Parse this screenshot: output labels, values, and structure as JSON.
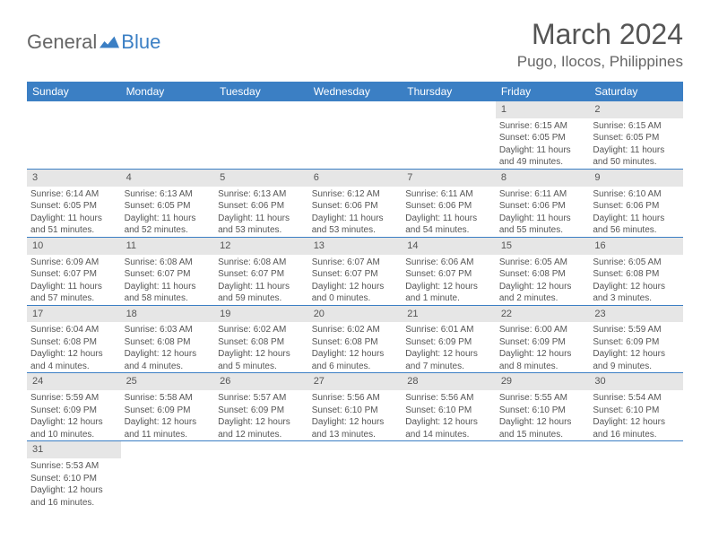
{
  "logo": {
    "general": "General",
    "blue": "Blue"
  },
  "header": {
    "month": "March 2024",
    "location": "Pugo, Ilocos, Philippines"
  },
  "colors": {
    "header_bg": "#3b7fc4",
    "header_text": "#ffffff",
    "daynum_bg": "#e6e6e6",
    "border": "#3b7fc4",
    "text": "#555555",
    "background": "#ffffff"
  },
  "weekdays": [
    "Sunday",
    "Monday",
    "Tuesday",
    "Wednesday",
    "Thursday",
    "Friday",
    "Saturday"
  ],
  "weeks": [
    [
      null,
      null,
      null,
      null,
      null,
      {
        "n": "1",
        "sr": "Sunrise: 6:15 AM",
        "ss": "Sunset: 6:05 PM",
        "dl": "Daylight: 11 hours and 49 minutes."
      },
      {
        "n": "2",
        "sr": "Sunrise: 6:15 AM",
        "ss": "Sunset: 6:05 PM",
        "dl": "Daylight: 11 hours and 50 minutes."
      }
    ],
    [
      {
        "n": "3",
        "sr": "Sunrise: 6:14 AM",
        "ss": "Sunset: 6:05 PM",
        "dl": "Daylight: 11 hours and 51 minutes."
      },
      {
        "n": "4",
        "sr": "Sunrise: 6:13 AM",
        "ss": "Sunset: 6:05 PM",
        "dl": "Daylight: 11 hours and 52 minutes."
      },
      {
        "n": "5",
        "sr": "Sunrise: 6:13 AM",
        "ss": "Sunset: 6:06 PM",
        "dl": "Daylight: 11 hours and 53 minutes."
      },
      {
        "n": "6",
        "sr": "Sunrise: 6:12 AM",
        "ss": "Sunset: 6:06 PM",
        "dl": "Daylight: 11 hours and 53 minutes."
      },
      {
        "n": "7",
        "sr": "Sunrise: 6:11 AM",
        "ss": "Sunset: 6:06 PM",
        "dl": "Daylight: 11 hours and 54 minutes."
      },
      {
        "n": "8",
        "sr": "Sunrise: 6:11 AM",
        "ss": "Sunset: 6:06 PM",
        "dl": "Daylight: 11 hours and 55 minutes."
      },
      {
        "n": "9",
        "sr": "Sunrise: 6:10 AM",
        "ss": "Sunset: 6:06 PM",
        "dl": "Daylight: 11 hours and 56 minutes."
      }
    ],
    [
      {
        "n": "10",
        "sr": "Sunrise: 6:09 AM",
        "ss": "Sunset: 6:07 PM",
        "dl": "Daylight: 11 hours and 57 minutes."
      },
      {
        "n": "11",
        "sr": "Sunrise: 6:08 AM",
        "ss": "Sunset: 6:07 PM",
        "dl": "Daylight: 11 hours and 58 minutes."
      },
      {
        "n": "12",
        "sr": "Sunrise: 6:08 AM",
        "ss": "Sunset: 6:07 PM",
        "dl": "Daylight: 11 hours and 59 minutes."
      },
      {
        "n": "13",
        "sr": "Sunrise: 6:07 AM",
        "ss": "Sunset: 6:07 PM",
        "dl": "Daylight: 12 hours and 0 minutes."
      },
      {
        "n": "14",
        "sr": "Sunrise: 6:06 AM",
        "ss": "Sunset: 6:07 PM",
        "dl": "Daylight: 12 hours and 1 minute."
      },
      {
        "n": "15",
        "sr": "Sunrise: 6:05 AM",
        "ss": "Sunset: 6:08 PM",
        "dl": "Daylight: 12 hours and 2 minutes."
      },
      {
        "n": "16",
        "sr": "Sunrise: 6:05 AM",
        "ss": "Sunset: 6:08 PM",
        "dl": "Daylight: 12 hours and 3 minutes."
      }
    ],
    [
      {
        "n": "17",
        "sr": "Sunrise: 6:04 AM",
        "ss": "Sunset: 6:08 PM",
        "dl": "Daylight: 12 hours and 4 minutes."
      },
      {
        "n": "18",
        "sr": "Sunrise: 6:03 AM",
        "ss": "Sunset: 6:08 PM",
        "dl": "Daylight: 12 hours and 4 minutes."
      },
      {
        "n": "19",
        "sr": "Sunrise: 6:02 AM",
        "ss": "Sunset: 6:08 PM",
        "dl": "Daylight: 12 hours and 5 minutes."
      },
      {
        "n": "20",
        "sr": "Sunrise: 6:02 AM",
        "ss": "Sunset: 6:08 PM",
        "dl": "Daylight: 12 hours and 6 minutes."
      },
      {
        "n": "21",
        "sr": "Sunrise: 6:01 AM",
        "ss": "Sunset: 6:09 PM",
        "dl": "Daylight: 12 hours and 7 minutes."
      },
      {
        "n": "22",
        "sr": "Sunrise: 6:00 AM",
        "ss": "Sunset: 6:09 PM",
        "dl": "Daylight: 12 hours and 8 minutes."
      },
      {
        "n": "23",
        "sr": "Sunrise: 5:59 AM",
        "ss": "Sunset: 6:09 PM",
        "dl": "Daylight: 12 hours and 9 minutes."
      }
    ],
    [
      {
        "n": "24",
        "sr": "Sunrise: 5:59 AM",
        "ss": "Sunset: 6:09 PM",
        "dl": "Daylight: 12 hours and 10 minutes."
      },
      {
        "n": "25",
        "sr": "Sunrise: 5:58 AM",
        "ss": "Sunset: 6:09 PM",
        "dl": "Daylight: 12 hours and 11 minutes."
      },
      {
        "n": "26",
        "sr": "Sunrise: 5:57 AM",
        "ss": "Sunset: 6:09 PM",
        "dl": "Daylight: 12 hours and 12 minutes."
      },
      {
        "n": "27",
        "sr": "Sunrise: 5:56 AM",
        "ss": "Sunset: 6:10 PM",
        "dl": "Daylight: 12 hours and 13 minutes."
      },
      {
        "n": "28",
        "sr": "Sunrise: 5:56 AM",
        "ss": "Sunset: 6:10 PM",
        "dl": "Daylight: 12 hours and 14 minutes."
      },
      {
        "n": "29",
        "sr": "Sunrise: 5:55 AM",
        "ss": "Sunset: 6:10 PM",
        "dl": "Daylight: 12 hours and 15 minutes."
      },
      {
        "n": "30",
        "sr": "Sunrise: 5:54 AM",
        "ss": "Sunset: 6:10 PM",
        "dl": "Daylight: 12 hours and 16 minutes."
      }
    ],
    [
      {
        "n": "31",
        "sr": "Sunrise: 5:53 AM",
        "ss": "Sunset: 6:10 PM",
        "dl": "Daylight: 12 hours and 16 minutes."
      },
      null,
      null,
      null,
      null,
      null,
      null
    ]
  ]
}
